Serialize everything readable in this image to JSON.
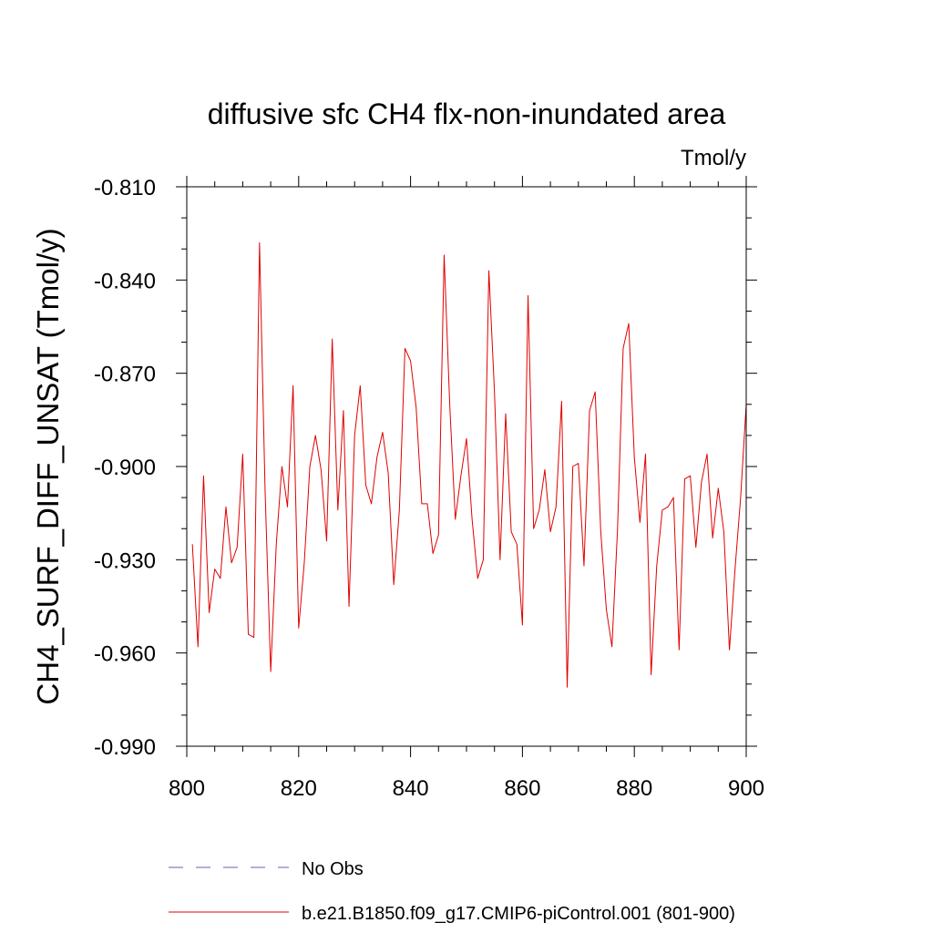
{
  "chart_data": {
    "type": "line",
    "title": "diffusive sfc CH4 flx-non-inundated area",
    "units_label": "Tmol/y",
    "xlabel": "",
    "ylabel": "CH4_SURF_DIFF_UNSAT  (Tmol/y)",
    "xlim": [
      800,
      900
    ],
    "ylim": [
      -0.99,
      -0.81
    ],
    "xticks": [
      800,
      820,
      840,
      860,
      880,
      900
    ],
    "xtick_labels": [
      "800",
      "820",
      "840",
      "860",
      "880",
      "900"
    ],
    "yticks": [
      -0.99,
      -0.96,
      -0.93,
      -0.9,
      -0.87,
      -0.84,
      -0.81
    ],
    "ytick_labels": [
      "-0.990",
      "-0.960",
      "-0.930",
      "-0.900",
      "-0.870",
      "-0.840",
      "-0.810"
    ],
    "series": [
      {
        "name": "b.e21.B1850.f09_g17.CMIP6-piControl.001 (801-900)",
        "color": "#e00000",
        "style": "solid",
        "x": [
          801,
          802,
          803,
          804,
          805,
          806,
          807,
          808,
          809,
          810,
          811,
          812,
          813,
          814,
          815,
          816,
          817,
          818,
          819,
          820,
          821,
          822,
          823,
          824,
          825,
          826,
          827,
          828,
          829,
          830,
          831,
          832,
          833,
          834,
          835,
          836,
          837,
          838,
          839,
          840,
          841,
          842,
          843,
          844,
          845,
          846,
          847,
          848,
          849,
          850,
          851,
          852,
          853,
          854,
          855,
          856,
          857,
          858,
          859,
          860,
          861,
          862,
          863,
          864,
          865,
          866,
          867,
          868,
          869,
          870,
          871,
          872,
          873,
          874,
          875,
          876,
          877,
          878,
          879,
          880,
          881,
          882,
          883,
          884,
          885,
          886,
          887,
          888,
          889,
          890,
          891,
          892,
          893,
          894,
          895,
          896,
          897,
          898,
          899,
          900
        ],
        "y": [
          -0.925,
          -0.958,
          -0.903,
          -0.947,
          -0.933,
          -0.936,
          -0.913,
          -0.931,
          -0.926,
          -0.896,
          -0.954,
          -0.955,
          -0.828,
          -0.908,
          -0.966,
          -0.925,
          -0.9,
          -0.913,
          -0.874,
          -0.952,
          -0.931,
          -0.9,
          -0.89,
          -0.901,
          -0.924,
          -0.859,
          -0.914,
          -0.882,
          -0.945,
          -0.89,
          -0.874,
          -0.906,
          -0.912,
          -0.897,
          -0.889,
          -0.902,
          -0.938,
          -0.914,
          -0.862,
          -0.866,
          -0.881,
          -0.912,
          -0.912,
          -0.928,
          -0.922,
          -0.832,
          -0.88,
          -0.917,
          -0.903,
          -0.891,
          -0.917,
          -0.936,
          -0.93,
          -0.837,
          -0.876,
          -0.93,
          -0.883,
          -0.921,
          -0.925,
          -0.951,
          -0.845,
          -0.92,
          -0.914,
          -0.901,
          -0.921,
          -0.913,
          -0.879,
          -0.971,
          -0.9,
          -0.899,
          -0.932,
          -0.882,
          -0.876,
          -0.921,
          -0.946,
          -0.958,
          -0.92,
          -0.862,
          -0.854,
          -0.897,
          -0.918,
          -0.896,
          -0.967,
          -0.932,
          -0.914,
          -0.913,
          -0.91,
          -0.959,
          -0.904,
          -0.903,
          -0.926,
          -0.905,
          -0.896,
          -0.923,
          -0.907,
          -0.921,
          -0.959,
          -0.933,
          -0.91,
          -0.88
        ]
      }
    ],
    "legend": {
      "placement": "bottom-left",
      "entries": [
        {
          "label": "No Obs",
          "color": "#6060c0",
          "style": "dashed"
        },
        {
          "label": "b.e21.B1850.f09_g17.CMIP6-piControl.001 (801-900)",
          "color": "#e00000",
          "style": "solid"
        }
      ]
    }
  }
}
